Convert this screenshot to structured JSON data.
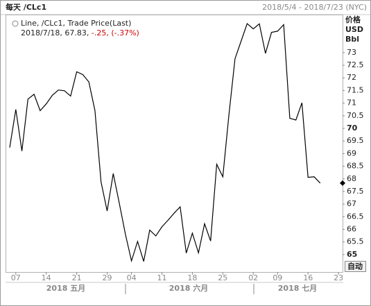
{
  "chart_data": {
    "type": "line",
    "title": "每天 /CLc1",
    "date_range": "2018/5/4 - 2018/7/23 (NYC)",
    "legend": {
      "series_label": "Line, /CLc1, Trade Price(Last)",
      "last_line": "2018/7/18, 67.83,",
      "change": "-.25, (-.37%)"
    },
    "y_axis_title": [
      "价格",
      "USD",
      "Bbl"
    ],
    "auto_button": "自动",
    "x_group_labels": [
      "2018 五月",
      "2018 六月",
      "2018 七月"
    ],
    "categories": [
      null,
      "07",
      null,
      null,
      null,
      null,
      "14",
      null,
      null,
      null,
      null,
      "21",
      null,
      null,
      null,
      null,
      "29",
      null,
      null,
      null,
      "04",
      null,
      null,
      null,
      null,
      "11",
      null,
      null,
      null,
      null,
      "18",
      null,
      null,
      null,
      null,
      "25",
      null,
      null,
      null,
      null,
      "02",
      null,
      null,
      null,
      "09",
      null,
      null,
      null,
      null,
      "16",
      null,
      null,
      null,
      null,
      "23"
    ],
    "series": [
      {
        "name": "/CLc1",
        "color": "#000000",
        "values": [
          69.24,
          70.75,
          69.1,
          71.16,
          71.35,
          70.7,
          70.97,
          71.31,
          71.52,
          71.49,
          71.28,
          72.24,
          72.13,
          71.84,
          70.71,
          67.88,
          66.73,
          68.21,
          67.04,
          65.81,
          64.75,
          65.52,
          64.73,
          65.97,
          65.74,
          66.1,
          66.36,
          66.64,
          66.89,
          65.06,
          65.85,
          65.07,
          66.22,
          65.54,
          68.58,
          68.08,
          70.53,
          72.76,
          73.45,
          74.15,
          73.94,
          74.14,
          72.97,
          73.8,
          73.85,
          74.11,
          70.4,
          70.33,
          71.01,
          68.06,
          68.08,
          67.83,
          null,
          null,
          null
        ]
      }
    ],
    "ylim": [
      64.31,
      74.48
    ],
    "yticks": [
      65,
      65.5,
      66,
      66.5,
      67,
      67.5,
      68,
      68.5,
      69,
      69.5,
      70,
      70.5,
      71,
      71.5,
      72,
      72.5,
      73
    ]
  }
}
